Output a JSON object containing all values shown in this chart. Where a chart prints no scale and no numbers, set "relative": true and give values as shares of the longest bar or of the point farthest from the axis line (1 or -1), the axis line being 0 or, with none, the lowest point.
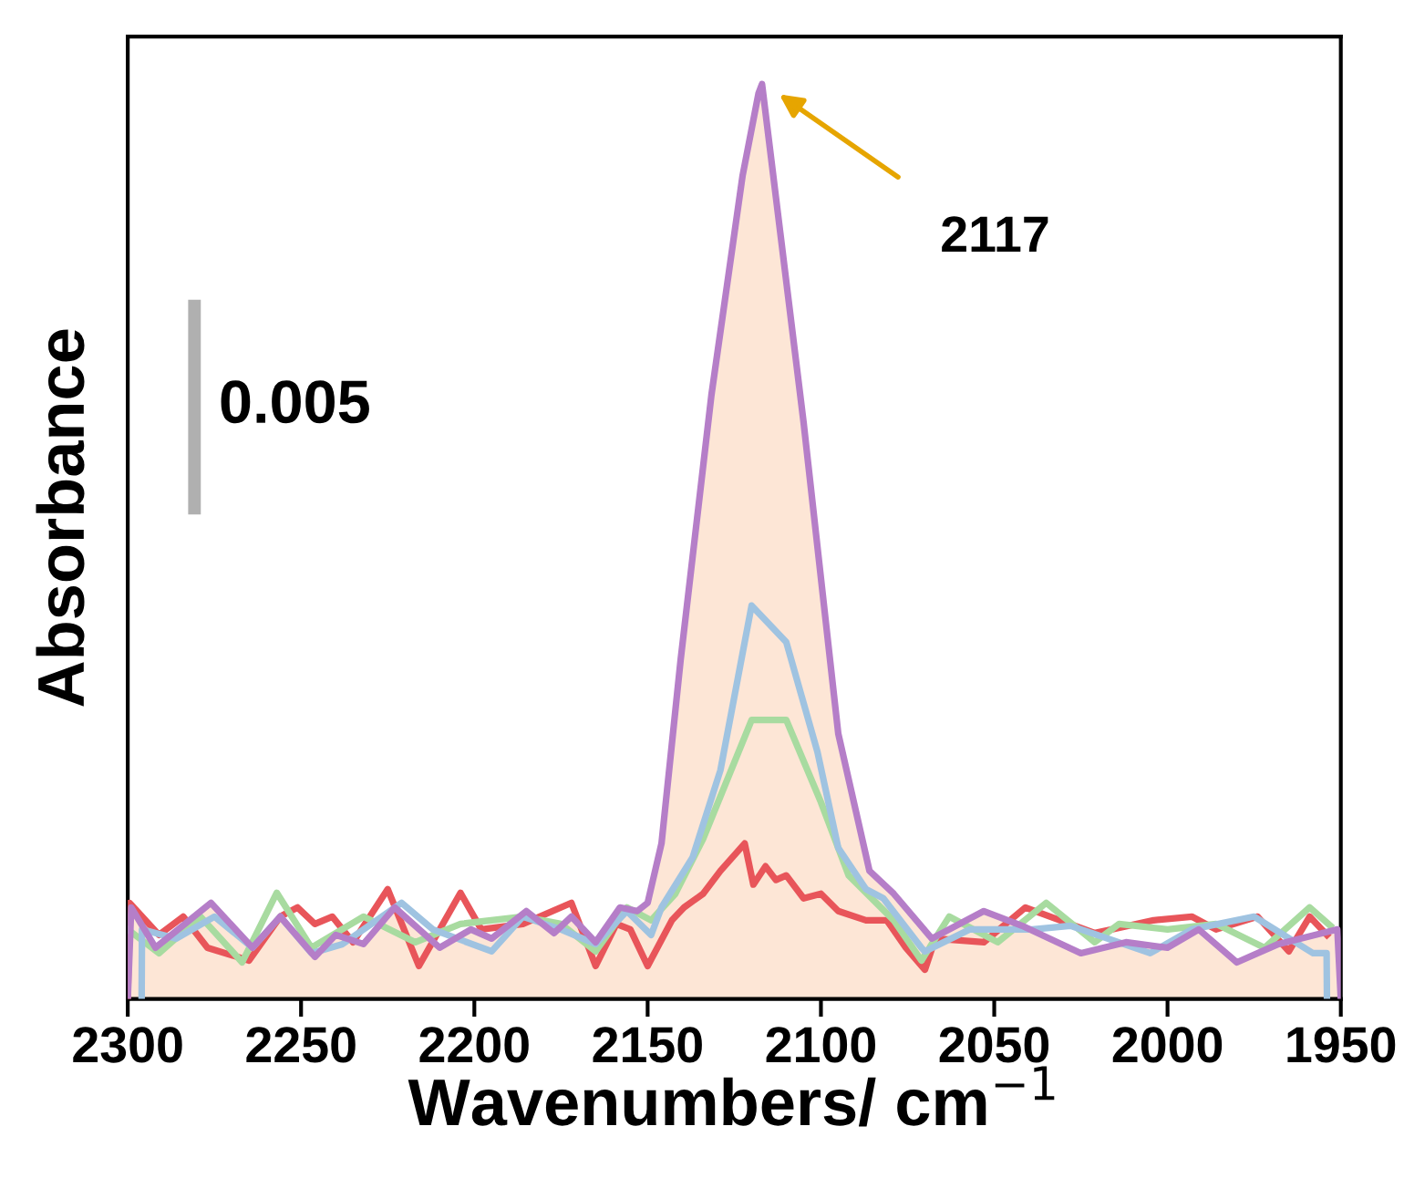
{
  "chart_data": {
    "type": "line",
    "xlabel": "Wavenumbers/ cm$^{−1}$",
    "ylabel": "Absorbance",
    "relative": true,
    "xlim": [
      2300,
      1950
    ],
    "xticks": [
      2300,
      2250,
      2200,
      2150,
      2100,
      2050,
      2000,
      1950
    ],
    "grid": false,
    "legend": false,
    "marker": "none",
    "line_style": "solid",
    "annotations": [
      "0.005",
      "2117"
    ],
    "series": [
      {
        "color": "#e8555a",
        "x": [
          2300,
          2299.5,
          2291,
          2284,
          2277,
          2265,
          2256,
          2251,
          2246,
          2241,
          2235,
          2225,
          2216,
          2204,
          2198,
          2186,
          2172,
          2165,
          2159,
          2155,
          2150,
          2143,
          2139.5,
          2134,
          2129,
          2122,
          2119.5,
          2116,
          2113,
          2110,
          2105,
          2100,
          2095,
          2087,
          2081,
          2075.5,
          2070,
          2067,
          2053,
          2041,
          2021,
          2004,
          1993,
          1986,
          1974,
          1965,
          1959,
          1954
        ],
        "values": [
          0,
          0.105,
          0.07,
          0.09,
          0.056,
          0.042,
          0.09,
          0.1,
          0.082,
          0.09,
          0.062,
          0.12,
          0.036,
          0.116,
          0.076,
          0.082,
          0.105,
          0.036,
          0.082,
          0.076,
          0.036,
          0.086,
          0.1,
          0.115,
          0.14,
          0.17,
          0.125,
          0.145,
          0.13,
          0.135,
          0.11,
          0.115,
          0.096,
          0.086,
          0.086,
          0.056,
          0.032,
          0.066,
          0.062,
          0.1,
          0.072,
          0.086,
          0.09,
          0.076,
          0.09,
          0.052,
          0.09,
          0.07
        ]
      },
      {
        "color": "#a8dba0",
        "x": [
          2300,
          2291,
          2279,
          2267,
          2257,
          2247,
          2232,
          2217,
          2204,
          2186,
          2175,
          2165,
          2156,
          2149,
          2142,
          2134,
          2120,
          2110,
          2100,
          2092,
          2079,
          2071,
          2063,
          2049,
          2035,
          2021,
          2014,
          2000,
          1986,
          1972,
          1959,
          1953
        ],
        "values": [
          0.076,
          0.05,
          0.09,
          0.04,
          0.116,
          0.056,
          0.09,
          0.062,
          0.082,
          0.09,
          0.082,
          0.052,
          0.1,
          0.086,
          0.115,
          0.175,
          0.305,
          0.305,
          0.215,
          0.135,
          0.086,
          0.042,
          0.09,
          0.062,
          0.105,
          0.062,
          0.082,
          0.076,
          0.082,
          0.056,
          0.1,
          0.08
        ]
      },
      {
        "color": "#9fc3e1",
        "x": [
          2296,
          2295.9,
          2286,
          2275,
          2264,
          2256,
          2247,
          2238,
          2221,
          2212,
          2195,
          2186,
          2175,
          2165,
          2156,
          2149,
          2146,
          2137,
          2129,
          2120,
          2110,
          2101,
          2095,
          2087,
          2082,
          2071,
          2070,
          2057,
          2039,
          2028,
          2005,
          1993,
          1975,
          1958,
          1954.1,
          1954
        ],
        "values": [
          0,
          0.076,
          0.066,
          0.09,
          0.056,
          0.09,
          0.05,
          0.06,
          0.105,
          0.076,
          0.052,
          0.09,
          0.076,
          0.06,
          0.096,
          0.07,
          0.1,
          0.155,
          0.25,
          0.43,
          0.39,
          0.27,
          0.165,
          0.12,
          0.11,
          0.056,
          0.052,
          0.076,
          0.076,
          0.08,
          0.05,
          0.076,
          0.09,
          0.05,
          0.05,
          0
        ]
      },
      {
        "color": "#b57ec8",
        "x": [
          2300,
          2299,
          2292,
          2276,
          2264,
          2256,
          2246,
          2240,
          2232,
          2223,
          2210,
          2201,
          2195,
          2185,
          2177,
          2172,
          2165,
          2158,
          2153,
          2150,
          2146,
          2140.5,
          2131.6,
          2122.6,
          2118,
          2117,
          2105,
          2095,
          2086,
          2079,
          2068,
          2053,
          2042,
          2025,
          2012,
          2000,
          1991,
          1980,
          1968,
          1951,
          1950
        ],
        "values": [
          0,
          0.1,
          0.056,
          0.105,
          0.056,
          0.09,
          0.046,
          0.07,
          0.06,
          0.1,
          0.056,
          0.076,
          0.066,
          0.096,
          0.072,
          0.09,
          0.062,
          0.1,
          0.096,
          0.105,
          0.17,
          0.37,
          0.66,
          0.9,
          0.99,
          1.0,
          0.63,
          0.29,
          0.14,
          0.115,
          0.066,
          0.096,
          0.08,
          0.05,
          0.062,
          0.056,
          0.076,
          0.04,
          0.06,
          0.076,
          0
        ]
      }
    ]
  }
}
